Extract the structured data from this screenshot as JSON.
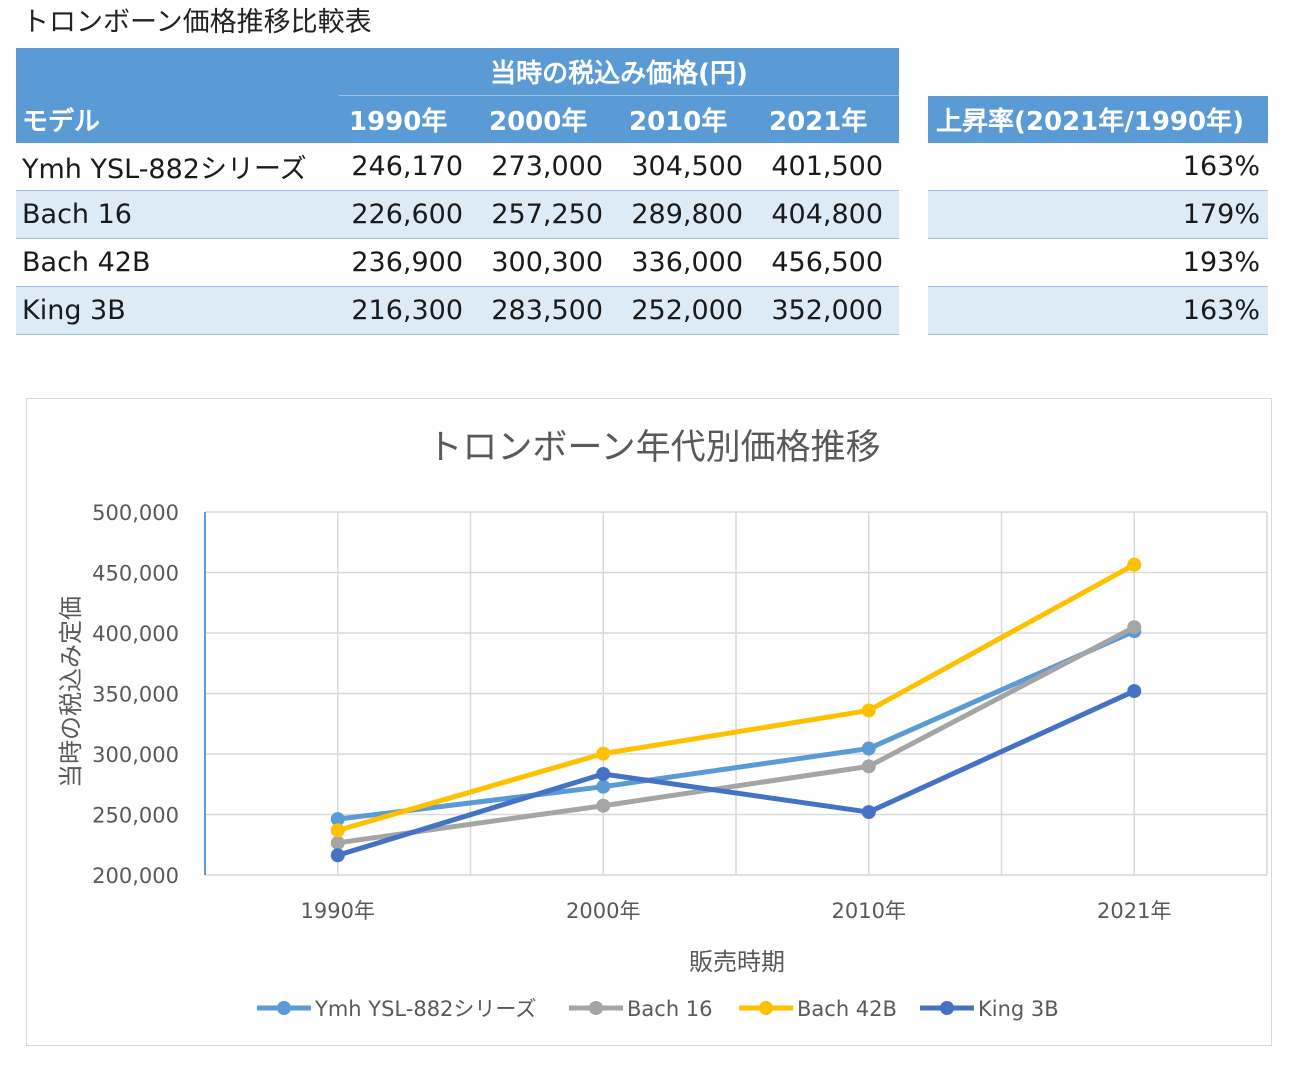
{
  "sheet_title": "トロンボーン価格推移比較表",
  "table": {
    "group_header": "当時の税込み価格(円)",
    "model_header": "モデル",
    "year_headers": [
      "1990年",
      "2000年",
      "2010年",
      "2021年"
    ],
    "rate_header": "上昇率(2021年/1990年)",
    "rows": [
      {
        "model": "Ymh YSL-882シリーズ",
        "prices": [
          "246,170",
          "273,000",
          "304,500",
          "401,500"
        ],
        "rate": "163%"
      },
      {
        "model": "Bach 16",
        "prices": [
          "226,600",
          "257,250",
          "289,800",
          "404,800"
        ],
        "rate": "179%"
      },
      {
        "model": "Bach 42B",
        "prices": [
          "236,900",
          "300,300",
          "336,000",
          "456,500"
        ],
        "rate": "193%"
      },
      {
        "model": "King 3B",
        "prices": [
          "216,300",
          "283,500",
          "252,000",
          "352,000"
        ],
        "rate": "163%"
      }
    ]
  },
  "chart_data": {
    "type": "line",
    "title": "トロンボーン年代別価格推移",
    "xlabel": "販売時期",
    "ylabel": "当時の税込み定価",
    "categories": [
      "1990年",
      "2000年",
      "2010年",
      "2021年"
    ],
    "ylim": [
      200000,
      500000
    ],
    "yticks": [
      200000,
      250000,
      300000,
      350000,
      400000,
      450000,
      500000
    ],
    "ytick_labels": [
      "200,000",
      "250,000",
      "300,000",
      "350,000",
      "400,000",
      "450,000",
      "500,000"
    ],
    "grid": true,
    "legend_position": "bottom",
    "series": [
      {
        "name": "Ymh YSL-882シリーズ",
        "color": "#5b9bd5",
        "values": [
          246170,
          273000,
          304500,
          401500
        ]
      },
      {
        "name": "Bach 16",
        "color": "#a5a5a5",
        "values": [
          226600,
          257250,
          289800,
          404800
        ]
      },
      {
        "name": "Bach 42B",
        "color": "#ffc000",
        "values": [
          236900,
          300300,
          336000,
          456500
        ]
      },
      {
        "name": "King 3B",
        "color": "#4472c4",
        "values": [
          216300,
          283500,
          252000,
          352000
        ]
      }
    ]
  }
}
